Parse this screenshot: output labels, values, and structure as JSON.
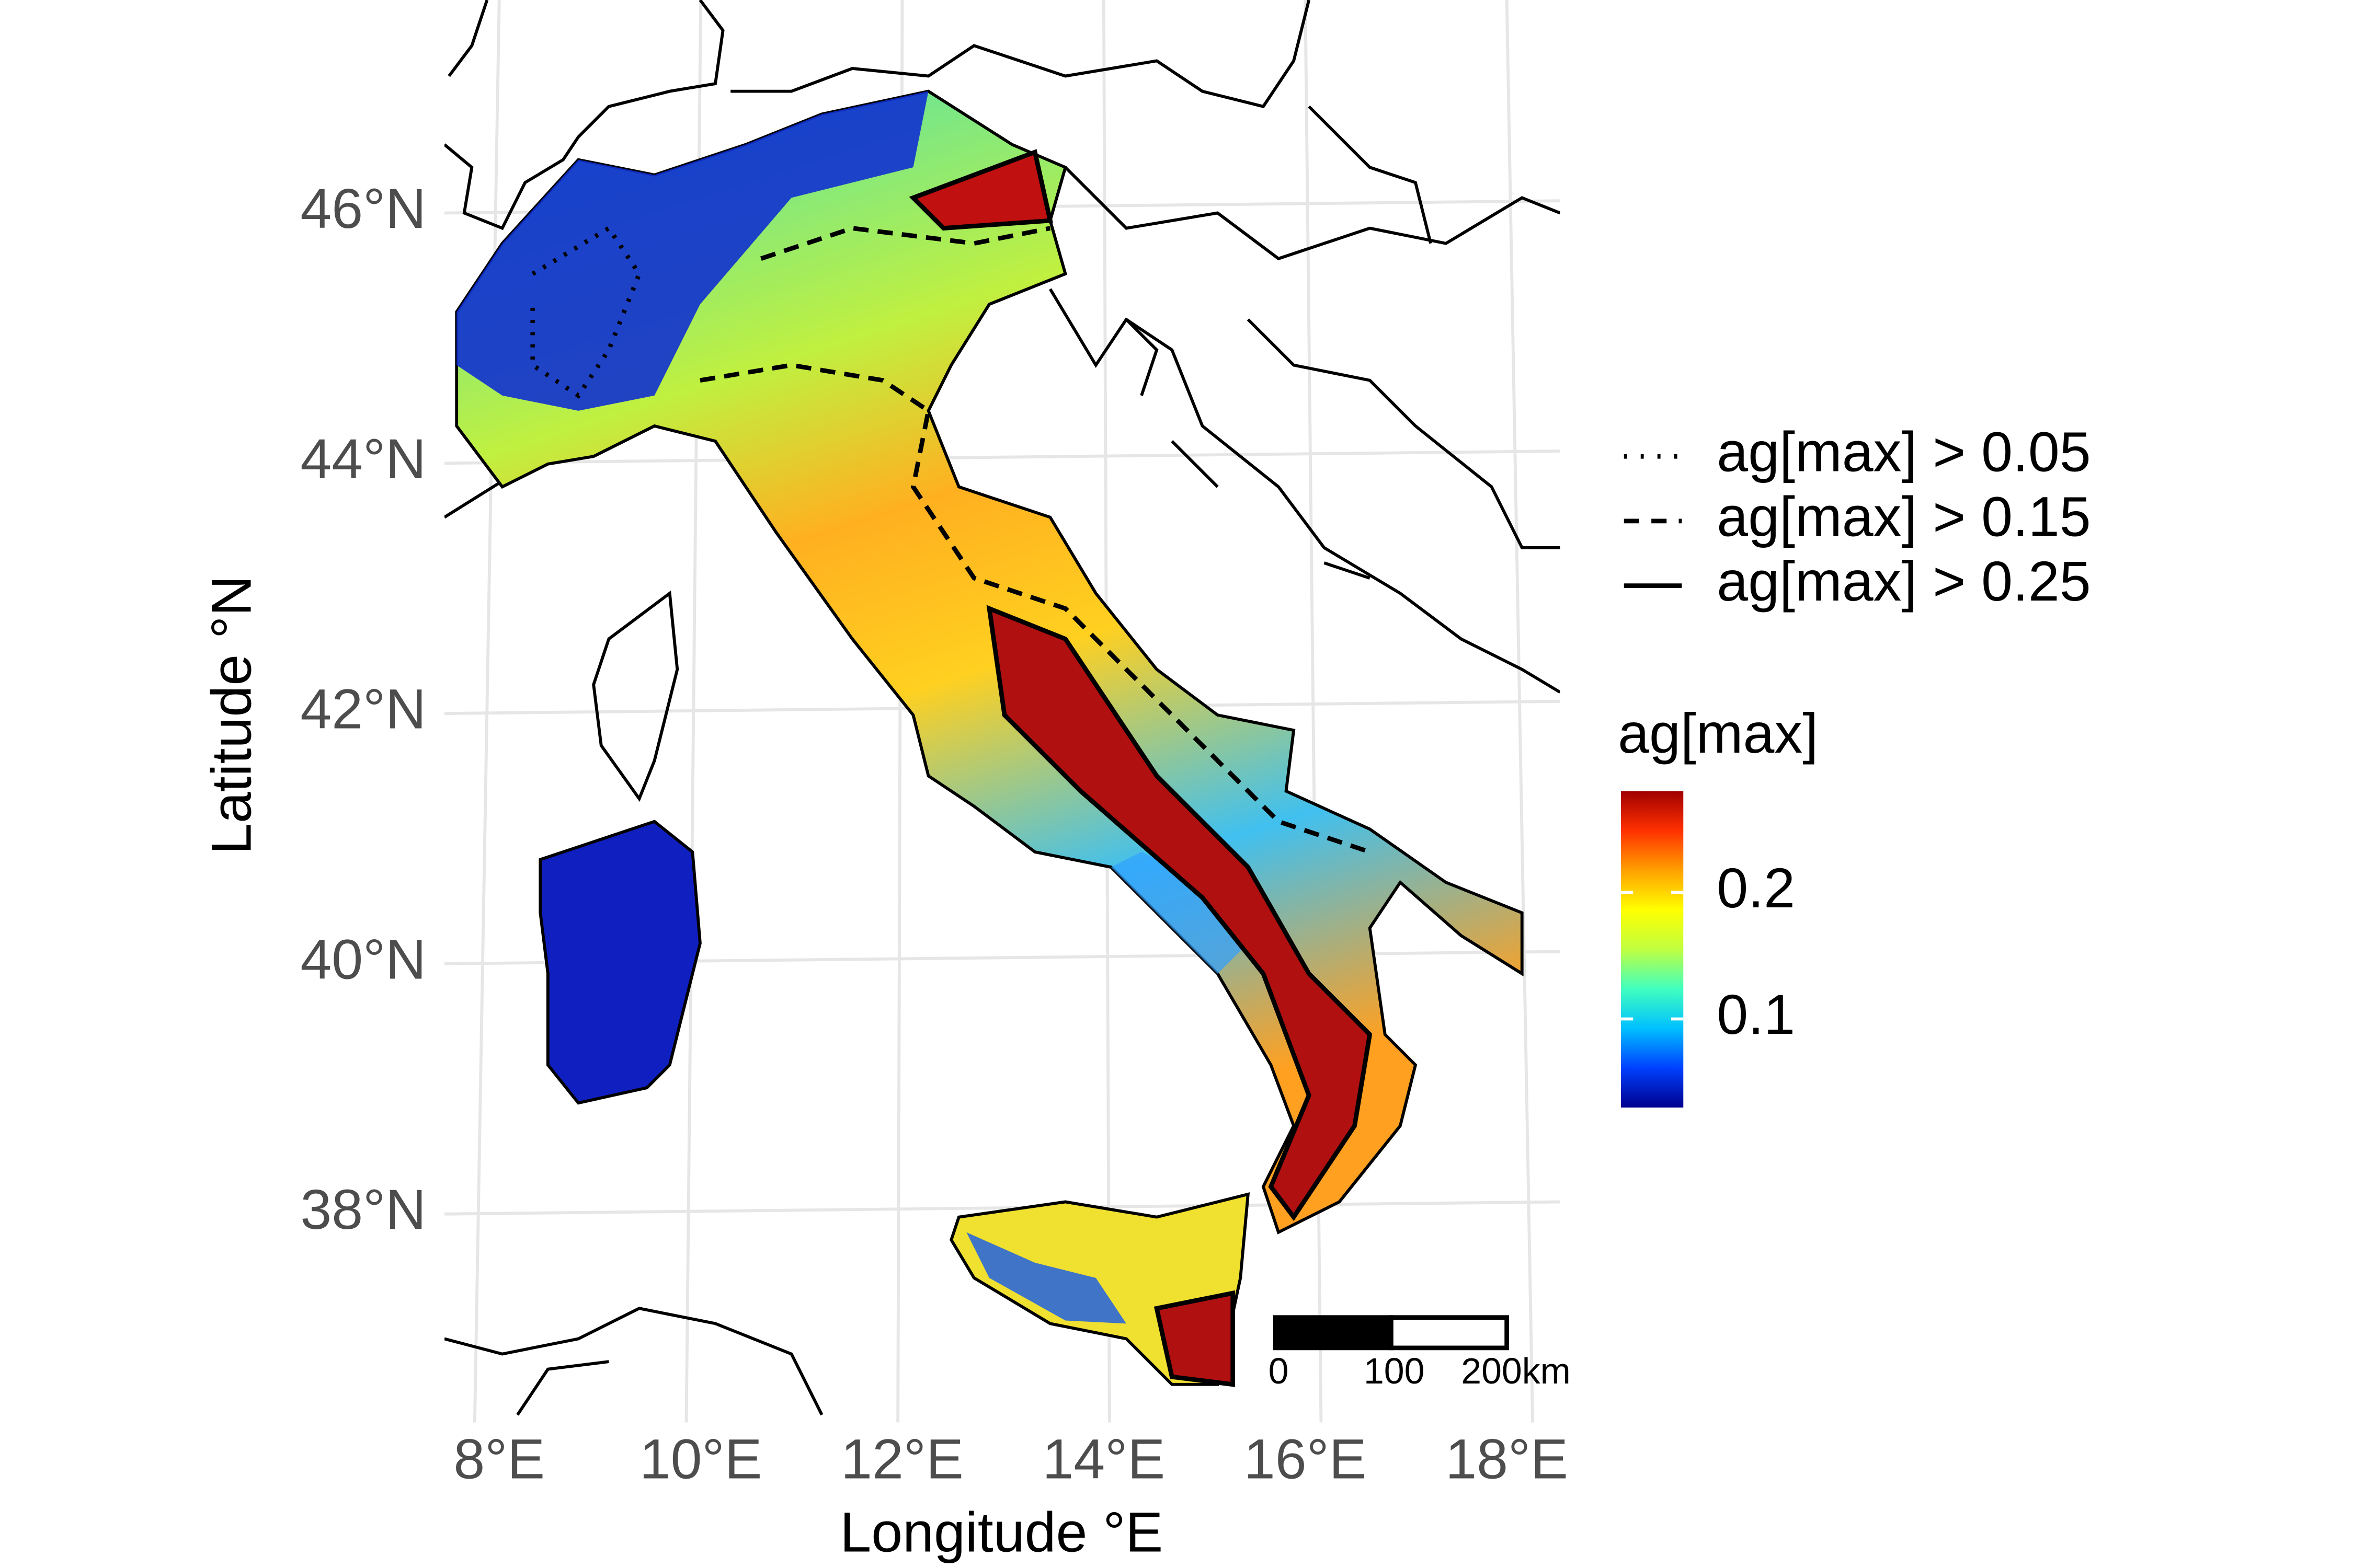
{
  "x_axis": {
    "label": "Longitude °E",
    "ticks": [
      {
        "value": 8,
        "label": "8°E"
      },
      {
        "value": 10,
        "label": "10°E"
      },
      {
        "value": 12,
        "label": "12°E"
      },
      {
        "value": 14,
        "label": "14°E"
      },
      {
        "value": 16,
        "label": "16°E"
      },
      {
        "value": 18,
        "label": "18°E"
      }
    ]
  },
  "y_axis": {
    "label": "Latitude °N",
    "ticks": [
      {
        "value": 38,
        "label": "38°N"
      },
      {
        "value": 40,
        "label": "40°N"
      },
      {
        "value": 42,
        "label": "42°N"
      },
      {
        "value": 44,
        "label": "44°N"
      },
      {
        "value": 46,
        "label": "46°N"
      }
    ]
  },
  "legend": {
    "lines": [
      {
        "style": "dotted",
        "label": "ag[max] > 0.05"
      },
      {
        "style": "dashed",
        "label": "ag[max] > 0.15"
      },
      {
        "style": "solid",
        "label": "ag[max] > 0.25"
      }
    ]
  },
  "colorbar": {
    "title": "ag[max]",
    "range": [
      0.03,
      0.28
    ],
    "ticks": [
      0.1,
      0.2
    ],
    "colors": [
      "#00008f",
      "#0040ff",
      "#00c0ff",
      "#40ffbf",
      "#c0ff40",
      "#ffff00",
      "#ffa000",
      "#ff3000",
      "#a00000"
    ]
  },
  "scale_bar": {
    "labels": [
      "0",
      "100",
      "200km"
    ]
  }
}
